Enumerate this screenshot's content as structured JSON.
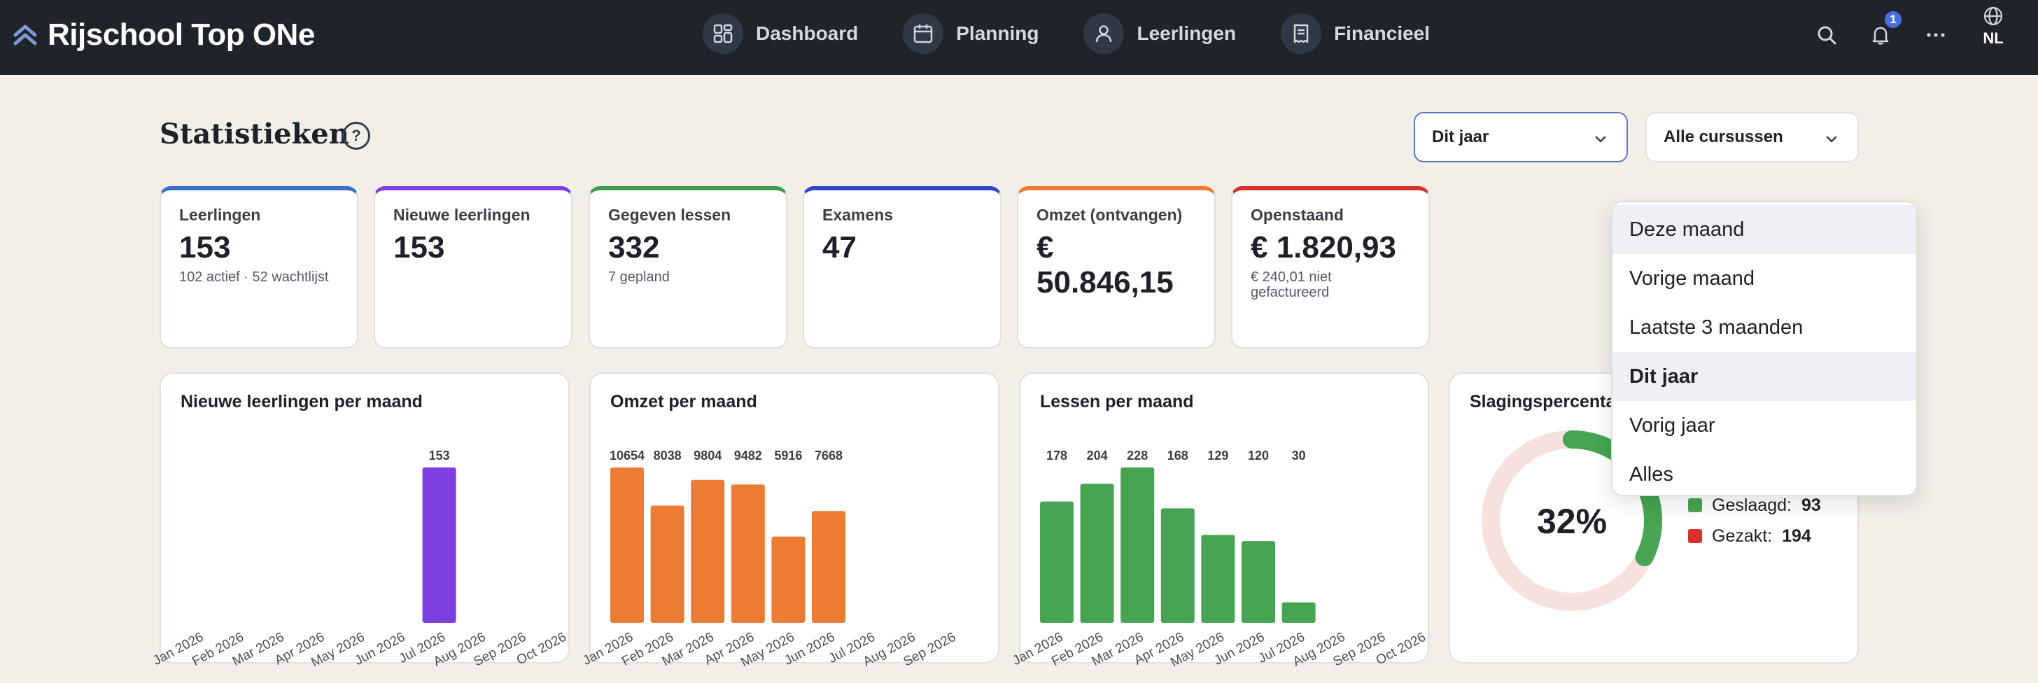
{
  "app": {
    "brand": "Rijschool Top ONe",
    "nav": [
      {
        "label": "Dashboard",
        "icon": "dashboard-icon"
      },
      {
        "label": "Planning",
        "icon": "calendar-icon"
      },
      {
        "label": "Leerlingen",
        "icon": "user-icon"
      },
      {
        "label": "Financieel",
        "icon": "receipt-icon"
      }
    ],
    "notifications_count": "1",
    "language": "NL"
  },
  "page": {
    "title": "Statistieken",
    "help": "?",
    "period_select": "Dit jaar",
    "course_select": "Alle cursussen"
  },
  "kpis": [
    {
      "label": "Leerlingen",
      "value": "153",
      "sub": "102 actief · 52 wachtlijst",
      "color": "#3b6fc8"
    },
    {
      "label": "Nieuwe leerlingen",
      "value": "153",
      "sub": "",
      "color": "#7d3fe0"
    },
    {
      "label": "Gegeven lessen",
      "value": "332",
      "sub": "7 gepland",
      "color": "#3f9e4d"
    },
    {
      "label": "Examens",
      "value": "47",
      "sub": "",
      "color": "#2c47c8"
    },
    {
      "label": "Omzet (ontvangen)",
      "value": "€ 50.846,15",
      "sub": "",
      "color": "#ec7c33"
    },
    {
      "label": "Openstaand",
      "value": "€ 1.820,93",
      "sub": "€ 240,01 niet gefactureerd",
      "color": "#d6322c"
    }
  ],
  "charts": {
    "new_students": {
      "title": "Nieuwe leerlingen per maand"
    },
    "revenue": {
      "title": "Omzet per maand"
    },
    "lessons": {
      "title": "Lessen per maand"
    },
    "pass_rate": {
      "title": "Slagingspercentage",
      "center": "32%"
    }
  },
  "chart_data": [
    {
      "type": "bar",
      "title": "Nieuwe leerlingen per maand",
      "categories": [
        "Jan 2026",
        "Feb 2026",
        "Mar 2026",
        "Apr 2026",
        "May 2026",
        "Jun 2026",
        "Jul 2026",
        "Aug 2026",
        "Sep 2026",
        "Oct 2026"
      ],
      "values": [
        0,
        0,
        0,
        0,
        0,
        0,
        153,
        0,
        0,
        0
      ],
      "labels": [
        "",
        "",
        "",
        "",
        "",
        "",
        "153",
        "",
        "",
        ""
      ],
      "color": "#7d3fe0"
    },
    {
      "type": "bar",
      "title": "Omzet per maand",
      "categories": [
        "Jan 2026",
        "Feb 2026",
        "Mar 2026",
        "Apr 2026",
        "May 2026",
        "Jun 2026",
        "Jul 2026",
        "Aug 2026",
        "Sep 2026"
      ],
      "values": [
        10654,
        8038,
        9804,
        9482,
        5916,
        7668,
        0,
        0,
        0
      ],
      "labels": [
        "10654",
        "8038",
        "9804",
        "9482",
        "5916",
        "7668",
        "",
        "",
        ""
      ],
      "color": "#ec7c33"
    },
    {
      "type": "bar",
      "title": "Lessen per maand",
      "categories": [
        "Jan 2026",
        "Feb 2026",
        "Mar 2026",
        "Apr 2026",
        "May 2026",
        "Jun 2026",
        "Jul 2026",
        "Aug 2026",
        "Sep 2026",
        "Oct 2026"
      ],
      "values": [
        178,
        204,
        228,
        168,
        129,
        120,
        30,
        0,
        0,
        0
      ],
      "labels": [
        "178",
        "204",
        "228",
        "168",
        "129",
        "120",
        "30",
        "",
        "",
        ""
      ],
      "color": "#47a452"
    },
    {
      "type": "pie",
      "title": "Slagingspercentage",
      "center_label": "32%",
      "slices": [
        {
          "name": "Geslaagd:",
          "value": 93,
          "color": "#47a452"
        },
        {
          "name": "Gezakt:",
          "value": 194,
          "color": "#d6322c"
        }
      ]
    }
  ],
  "dropdown": {
    "items": [
      "Deze maand",
      "Vorige maand",
      "Laatste 3 maanden",
      "Dit jaar",
      "Vorig jaar",
      "Alles"
    ],
    "hover_index": 0,
    "selected_index": 3
  }
}
